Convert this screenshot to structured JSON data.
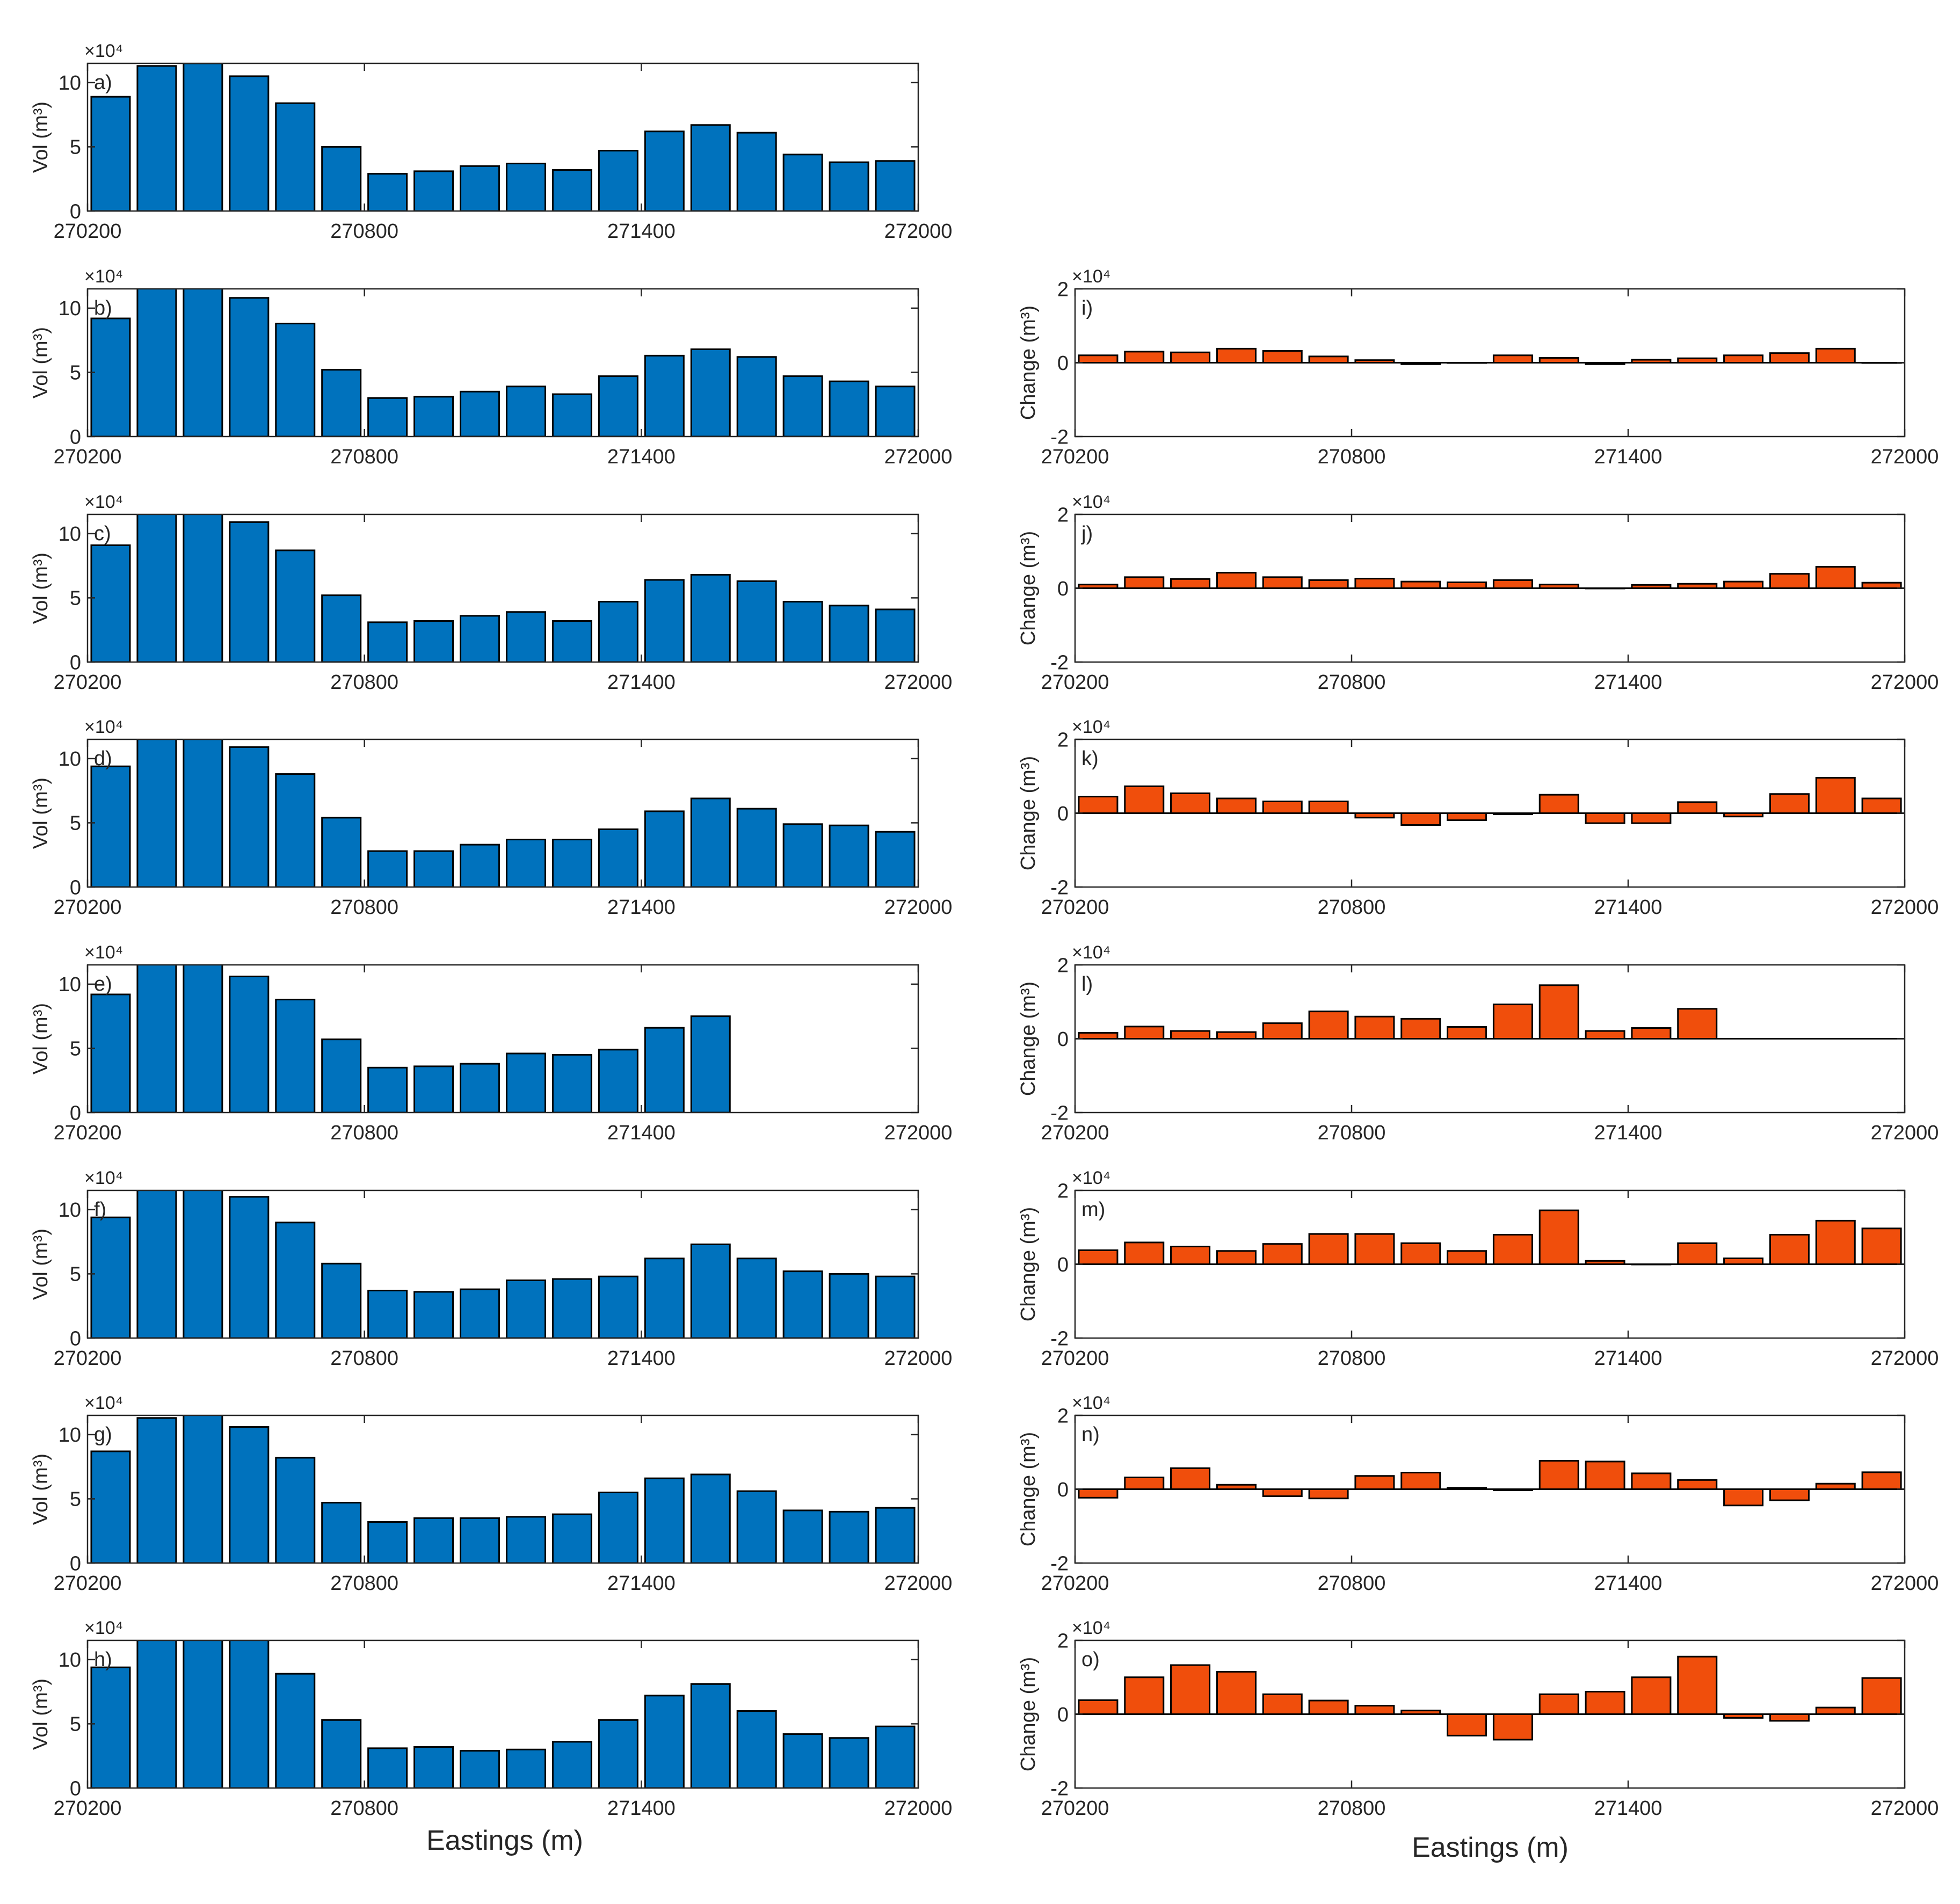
{
  "figure": {
    "left_xlabel": "Eastings (m)",
    "right_xlabel": "Eastings (m)",
    "colors": {
      "volume_bar": "#0072BD",
      "change_bar": "#F04E0C",
      "axis": "#262626",
      "zero_line": "#000000"
    }
  },
  "chart_data": [
    {
      "type": "bar",
      "panel": "a)",
      "column": "left",
      "ylabel": "Vol (m³)",
      "exponent": "×10⁴",
      "xlim": [
        270200,
        272000
      ],
      "ylim": [
        0,
        115000
      ],
      "xticks": [
        270200,
        270800,
        271400,
        272000
      ],
      "xticklabels": [
        "270200",
        "270800",
        "271400",
        "272000"
      ],
      "yticks": [
        0,
        50000,
        100000
      ],
      "yticklabels": [
        "0",
        "5",
        "10"
      ],
      "x": [
        270250,
        270350,
        270450,
        270550,
        270650,
        270750,
        270850,
        270950,
        271050,
        271150,
        271250,
        271350,
        271450,
        271550,
        271650,
        271750,
        271850,
        271950
      ],
      "values": [
        89000,
        113000,
        115000,
        105000,
        84000,
        50000,
        29000,
        31000,
        35000,
        37000,
        32000,
        47000,
        62000,
        67000,
        61000,
        44000,
        38000,
        39000
      ]
    },
    {
      "type": "bar",
      "panel": "b)",
      "column": "left",
      "ylabel": "Vol (m³)",
      "exponent": "×10⁴",
      "xlim": [
        270200,
        272000
      ],
      "ylim": [
        0,
        115000
      ],
      "xticks": [
        270200,
        270800,
        271400,
        272000
      ],
      "xticklabels": [
        "270200",
        "270800",
        "271400",
        "272000"
      ],
      "yticks": [
        0,
        50000,
        100000
      ],
      "yticklabels": [
        "0",
        "5",
        "10"
      ],
      "x": [
        270250,
        270350,
        270450,
        270550,
        270650,
        270750,
        270850,
        270950,
        271050,
        271150,
        271250,
        271350,
        271450,
        271550,
        271650,
        271750,
        271850,
        271950
      ],
      "values": [
        92000,
        118000,
        118000,
        108000,
        88000,
        52000,
        30000,
        31000,
        35000,
        39000,
        33000,
        47000,
        63000,
        68000,
        62000,
        47000,
        43000,
        39000
      ]
    },
    {
      "type": "bar",
      "panel": "c)",
      "column": "left",
      "ylabel": "Vol (m³)",
      "exponent": "×10⁴",
      "xlim": [
        270200,
        272000
      ],
      "ylim": [
        0,
        115000
      ],
      "xticks": [
        270200,
        270800,
        271400,
        272000
      ],
      "xticklabels": [
        "270200",
        "270800",
        "271400",
        "272000"
      ],
      "yticks": [
        0,
        50000,
        100000
      ],
      "yticklabels": [
        "0",
        "5",
        "10"
      ],
      "x": [
        270250,
        270350,
        270450,
        270550,
        270650,
        270750,
        270850,
        270950,
        271050,
        271150,
        271250,
        271350,
        271450,
        271550,
        271650,
        271750,
        271850,
        271950
      ],
      "values": [
        91000,
        118000,
        118000,
        109000,
        87000,
        52000,
        31000,
        32000,
        36000,
        39000,
        32000,
        47000,
        64000,
        68000,
        63000,
        47000,
        44000,
        41000
      ]
    },
    {
      "type": "bar",
      "panel": "d)",
      "column": "left",
      "ylabel": "Vol (m³)",
      "exponent": "×10⁴",
      "xlim": [
        270200,
        272000
      ],
      "ylim": [
        0,
        115000
      ],
      "xticks": [
        270200,
        270800,
        271400,
        272000
      ],
      "xticklabels": [
        "270200",
        "270800",
        "271400",
        "272000"
      ],
      "yticks": [
        0,
        50000,
        100000
      ],
      "yticklabels": [
        "0",
        "5",
        "10"
      ],
      "x": [
        270250,
        270350,
        270450,
        270550,
        270650,
        270750,
        270850,
        270950,
        271050,
        271150,
        271250,
        271350,
        271450,
        271550,
        271650,
        271750,
        271850,
        271950
      ],
      "values": [
        94000,
        120000,
        119000,
        109000,
        88000,
        54000,
        28000,
        28000,
        33000,
        37000,
        37000,
        45000,
        59000,
        69000,
        61000,
        49000,
        48000,
        43000
      ]
    },
    {
      "type": "bar",
      "panel": "e)",
      "column": "left",
      "ylabel": "Vol (m³)",
      "exponent": "×10⁴",
      "xlim": [
        270200,
        272000
      ],
      "ylim": [
        0,
        115000
      ],
      "xticks": [
        270200,
        270800,
        271400,
        272000
      ],
      "xticklabels": [
        "270200",
        "270800",
        "271400",
        "272000"
      ],
      "yticks": [
        0,
        50000,
        100000
      ],
      "yticklabels": [
        "0",
        "5",
        "10"
      ],
      "x": [
        270250,
        270350,
        270450,
        270550,
        270650,
        270750,
        270850,
        270950,
        271050,
        271150,
        271250,
        271350,
        271450,
        271550
      ],
      "values": [
        92000,
        118000,
        118000,
        106000,
        88000,
        57000,
        35000,
        36000,
        38000,
        46000,
        45000,
        49000,
        66000,
        75000
      ]
    },
    {
      "type": "bar",
      "panel": "f)",
      "column": "left",
      "ylabel": "Vol (m³)",
      "exponent": "×10⁴",
      "xlim": [
        270200,
        272000
      ],
      "ylim": [
        0,
        115000
      ],
      "xticks": [
        270200,
        270800,
        271400,
        272000
      ],
      "xticklabels": [
        "270200",
        "270800",
        "271400",
        "272000"
      ],
      "yticks": [
        0,
        50000,
        100000
      ],
      "yticklabels": [
        "0",
        "5",
        "10"
      ],
      "x": [
        270250,
        270350,
        270450,
        270550,
        270650,
        270750,
        270850,
        270950,
        271050,
        271150,
        271250,
        271350,
        271450,
        271550,
        271650,
        271750,
        271850,
        271950
      ],
      "values": [
        94000,
        120000,
        120000,
        110000,
        90000,
        58000,
        37000,
        36000,
        38000,
        45000,
        46000,
        48000,
        62000,
        73000,
        62000,
        52000,
        50000,
        48000
      ]
    },
    {
      "type": "bar",
      "panel": "g)",
      "column": "left",
      "ylabel": "Vol (m³)",
      "exponent": "×10⁴",
      "xlim": [
        270200,
        272000
      ],
      "ylim": [
        0,
        115000
      ],
      "xticks": [
        270200,
        270800,
        271400,
        272000
      ],
      "xticklabels": [
        "270200",
        "270800",
        "271400",
        "272000"
      ],
      "yticks": [
        0,
        50000,
        100000
      ],
      "yticklabels": [
        "0",
        "5",
        "10"
      ],
      "x": [
        270250,
        270350,
        270450,
        270550,
        270650,
        270750,
        270850,
        270950,
        271050,
        271150,
        271250,
        271350,
        271450,
        271550,
        271650,
        271750,
        271850,
        271950
      ],
      "values": [
        87000,
        113000,
        120000,
        106000,
        82000,
        47000,
        32000,
        35000,
        35000,
        36000,
        38000,
        55000,
        66000,
        69000,
        56000,
        41000,
        40000,
        43000
      ]
    },
    {
      "type": "bar",
      "panel": "h)",
      "column": "left",
      "ylabel": "Vol (m³)",
      "exponent": "×10⁴",
      "xlim": [
        270200,
        272000
      ],
      "ylim": [
        0,
        115000
      ],
      "xticks": [
        270200,
        270800,
        271400,
        272000
      ],
      "xticklabels": [
        "270200",
        "270800",
        "271400",
        "272000"
      ],
      "yticks": [
        0,
        50000,
        100000
      ],
      "yticklabels": [
        "0",
        "5",
        "10"
      ],
      "x": [
        270250,
        270350,
        270450,
        270550,
        270650,
        270750,
        270850,
        270950,
        271050,
        271150,
        271250,
        271350,
        271450,
        271550,
        271650,
        271750,
        271850,
        271950
      ],
      "values": [
        94000,
        122000,
        128000,
        116000,
        89000,
        53000,
        31000,
        32000,
        29000,
        30000,
        36000,
        53000,
        72000,
        81000,
        60000,
        42000,
        39000,
        48000
      ]
    },
    {
      "type": "bar",
      "panel": "i)",
      "column": "right",
      "ylabel": "Change (m³)",
      "exponent": "×10⁴",
      "xlim": [
        270200,
        272000
      ],
      "ylim": [
        -20000,
        20000
      ],
      "xticks": [
        270200,
        270800,
        271400,
        272000
      ],
      "xticklabels": [
        "270200",
        "270800",
        "271400",
        "272000"
      ],
      "yticks": [
        -20000,
        0,
        20000
      ],
      "yticklabels": [
        "-2",
        "0",
        "2"
      ],
      "x": [
        270250,
        270350,
        270450,
        270550,
        270650,
        270750,
        270850,
        270950,
        271050,
        271150,
        271250,
        271350,
        271450,
        271550,
        271650,
        271750,
        271850,
        271950
      ],
      "values": [
        2000,
        3000,
        2800,
        3800,
        3200,
        1700,
        700,
        -400,
        0,
        2000,
        1300,
        -400,
        800,
        1200,
        2000,
        2600,
        3800,
        0
      ]
    },
    {
      "type": "bar",
      "panel": "j)",
      "column": "right",
      "ylabel": "Change (m³)",
      "exponent": "×10⁴",
      "xlim": [
        270200,
        272000
      ],
      "ylim": [
        -20000,
        20000
      ],
      "xticks": [
        270200,
        270800,
        271400,
        272000
      ],
      "xticklabels": [
        "270200",
        "270800",
        "271400",
        "272000"
      ],
      "yticks": [
        -20000,
        0,
        20000
      ],
      "yticklabels": [
        "-2",
        "0",
        "2"
      ],
      "x": [
        270250,
        270350,
        270450,
        270550,
        270650,
        270750,
        270850,
        270950,
        271050,
        271150,
        271250,
        271350,
        271450,
        271550,
        271650,
        271750,
        271850,
        271950
      ],
      "values": [
        1000,
        3000,
        2500,
        4200,
        3000,
        2200,
        2600,
        1800,
        1600,
        2200,
        1000,
        0,
        900,
        1200,
        1800,
        3900,
        5800,
        1500
      ]
    },
    {
      "type": "bar",
      "panel": "k)",
      "column": "right",
      "ylabel": "Change (m³)",
      "exponent": "×10⁴",
      "xlim": [
        270200,
        272000
      ],
      "ylim": [
        -20000,
        20000
      ],
      "xticks": [
        270200,
        270800,
        271400,
        272000
      ],
      "xticklabels": [
        "270200",
        "270800",
        "271400",
        "272000"
      ],
      "yticks": [
        -20000,
        0,
        20000
      ],
      "yticklabels": [
        "-2",
        "0",
        "2"
      ],
      "x": [
        270250,
        270350,
        270450,
        270550,
        270650,
        270750,
        270850,
        270950,
        271050,
        271150,
        271250,
        271350,
        271450,
        271550,
        271650,
        271750,
        271850,
        271950
      ],
      "values": [
        4500,
        7300,
        5400,
        4000,
        3200,
        3200,
        -1200,
        -3200,
        -1900,
        -300,
        5000,
        -2700,
        -2700,
        3000,
        -900,
        5200,
        9600,
        4000
      ]
    },
    {
      "type": "bar",
      "panel": "l)",
      "column": "right",
      "ylabel": "Change (m³)",
      "exponent": "×10⁴",
      "xlim": [
        270200,
        272000
      ],
      "ylim": [
        -20000,
        20000
      ],
      "xticks": [
        270200,
        270800,
        271400,
        272000
      ],
      "xticklabels": [
        "270200",
        "270800",
        "271400",
        "272000"
      ],
      "yticks": [
        -20000,
        0,
        20000
      ],
      "yticklabels": [
        "-2",
        "0",
        "2"
      ],
      "x": [
        270250,
        270350,
        270450,
        270550,
        270650,
        270750,
        270850,
        270950,
        271050,
        271150,
        271250,
        271350,
        271450,
        271550
      ],
      "values": [
        1600,
        3300,
        2100,
        1800,
        4200,
        7400,
        6000,
        5400,
        3200,
        9300,
        14500,
        2100,
        2900,
        8100
      ]
    },
    {
      "type": "bar",
      "panel": "m)",
      "column": "right",
      "ylabel": "Change (m³)",
      "exponent": "×10⁴",
      "xlim": [
        270200,
        272000
      ],
      "ylim": [
        -20000,
        20000
      ],
      "xticks": [
        270200,
        270800,
        271400,
        272000
      ],
      "xticklabels": [
        "270200",
        "270800",
        "271400",
        "272000"
      ],
      "yticks": [
        -20000,
        0,
        20000
      ],
      "yticklabels": [
        "-2",
        "0",
        "2"
      ],
      "x": [
        270250,
        270350,
        270450,
        270550,
        270650,
        270750,
        270850,
        270950,
        271050,
        271150,
        271250,
        271350,
        271450,
        271550,
        271650,
        271750,
        271850,
        271950
      ],
      "values": [
        3800,
        5900,
        4800,
        3600,
        5500,
        8200,
        8200,
        5700,
        3600,
        8000,
        14600,
        900,
        0,
        5700,
        1600,
        8000,
        11800,
        9700
      ]
    },
    {
      "type": "bar",
      "panel": "n)",
      "column": "right",
      "ylabel": "Change (m³)",
      "exponent": "×10⁴",
      "xlim": [
        270200,
        272000
      ],
      "ylim": [
        -20000,
        20000
      ],
      "xticks": [
        270200,
        270800,
        271400,
        272000
      ],
      "xticklabels": [
        "270200",
        "270800",
        "271400",
        "272000"
      ],
      "yticks": [
        -20000,
        0,
        20000
      ],
      "yticklabels": [
        "-2",
        "0",
        "2"
      ],
      "x": [
        270250,
        270350,
        270450,
        270550,
        270650,
        270750,
        270850,
        270950,
        271050,
        271150,
        271250,
        271350,
        271450,
        271550,
        271650,
        271750,
        271850,
        271950
      ],
      "values": [
        -2300,
        3200,
        5700,
        1200,
        -1900,
        -2500,
        3600,
        4500,
        400,
        -300,
        7700,
        7500,
        4300,
        2500,
        -4400,
        -3000,
        1500,
        4600
      ]
    },
    {
      "type": "bar",
      "panel": "o)",
      "column": "right",
      "ylabel": "Change (m³)",
      "exponent": "×10⁴",
      "xlim": [
        270200,
        272000
      ],
      "ylim": [
        -20000,
        20000
      ],
      "xticks": [
        270200,
        270800,
        271400,
        272000
      ],
      "xticklabels": [
        "270200",
        "270800",
        "271400",
        "272000"
      ],
      "yticks": [
        -20000,
        0,
        20000
      ],
      "yticklabels": [
        "-2",
        "0",
        "2"
      ],
      "x": [
        270250,
        270350,
        270450,
        270550,
        270650,
        270750,
        270850,
        270950,
        271050,
        271150,
        271250,
        271350,
        271450,
        271550,
        271650,
        271750,
        271850,
        271950
      ],
      "values": [
        3800,
        10000,
        13300,
        11500,
        5400,
        3700,
        2300,
        1000,
        -5800,
        -6900,
        5400,
        6100,
        10000,
        15600,
        -1000,
        -1800,
        1800,
        9800
      ]
    }
  ]
}
